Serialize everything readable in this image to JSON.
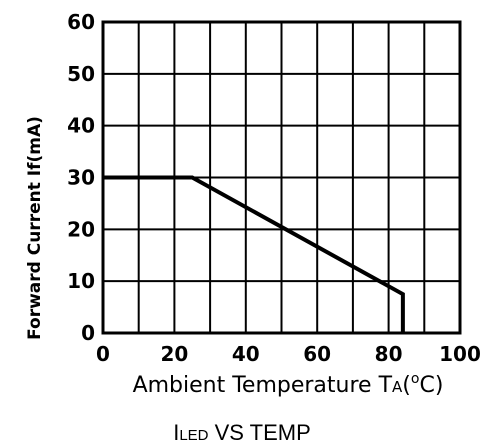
{
  "chart_data": {
    "type": "line",
    "title": "",
    "xlabel": "Ambient Temperature T",
    "xlabel_sub": "A",
    "xlabel_unit_deg": "o",
    "xlabel_unit": "C",
    "xlabel_open": "(",
    "xlabel_close": ")",
    "ylabel": "Forward Current If(mA)",
    "caption_main": "I",
    "caption_sub": "LED",
    "caption_rest": " VS TEMP",
    "xlim": [
      0,
      100
    ],
    "ylim": [
      0,
      60
    ],
    "xticks": [
      "0",
      "20",
      "40",
      "60",
      "80",
      "100"
    ],
    "yticks": [
      "0",
      "10",
      "20",
      "30",
      "40",
      "50",
      "60"
    ],
    "grid": true,
    "grid_x_step": 10,
    "grid_y_step": 10,
    "series": [
      {
        "x": [
          0,
          25,
          84,
          84
        ],
        "y": [
          30,
          30,
          7.5,
          0
        ]
      }
    ]
  }
}
